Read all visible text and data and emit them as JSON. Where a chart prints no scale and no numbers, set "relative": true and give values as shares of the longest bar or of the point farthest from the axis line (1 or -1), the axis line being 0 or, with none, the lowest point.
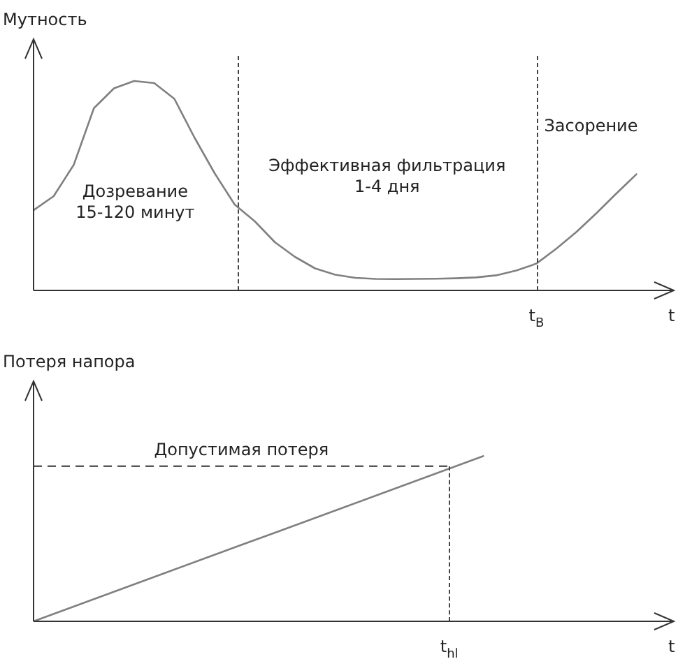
{
  "chart_data": [
    {
      "type": "line",
      "ylabel": "Мутность",
      "xlabel": "t",
      "relative": true,
      "color": "#808080",
      "categories": [
        null,
        null,
        null,
        null,
        null,
        null,
        null,
        null,
        null,
        null,
        null,
        null,
        null,
        null,
        null,
        null,
        null,
        null,
        null,
        null,
        null,
        null,
        null,
        null,
        null,
        null,
        null,
        null,
        null,
        null,
        null,
        null
      ],
      "values": [
        0.383,
        0.45,
        0.6,
        0.87,
        0.965,
        1,
        0.99,
        0.915,
        0.73,
        0.56,
        0.41,
        0.33,
        0.23,
        0.16,
        0.105,
        0.075,
        0.06,
        0.055,
        0.054,
        0.055,
        0.056,
        0.058,
        0.062,
        0.072,
        0.095,
        0.128,
        0.2,
        0.28,
        0.37,
        0.465,
        0.557,
        null
      ],
      "annotations": [
        "Дозревание\n15-120 минут",
        "Эффективная фильтрация\n1-4 дня",
        "Засорение",
        "t$_{В}$"
      ]
    },
    {
      "type": "line",
      "ylabel": "Потеря напора",
      "xlabel": "t",
      "relative": true,
      "color": "#808080",
      "categories": [
        null,
        null,
        null,
        null,
        null,
        null,
        null,
        null,
        null,
        null,
        null,
        null,
        null,
        null,
        null,
        null,
        null,
        null,
        null
      ],
      "values": [
        0,
        0.077,
        0.154,
        0.231,
        0.308,
        0.385,
        0.462,
        0.538,
        0.615,
        0.692,
        0.769,
        0.846,
        0.923,
        1,
        null,
        null,
        null,
        null,
        null
      ],
      "ref_lines": [
        {
          "axis": "y",
          "value": 0.938,
          "line_style": "dashed",
          "label": "Допустимая потеря"
        }
      ],
      "annotations": [
        "t$_{hl}$"
      ]
    }
  ]
}
